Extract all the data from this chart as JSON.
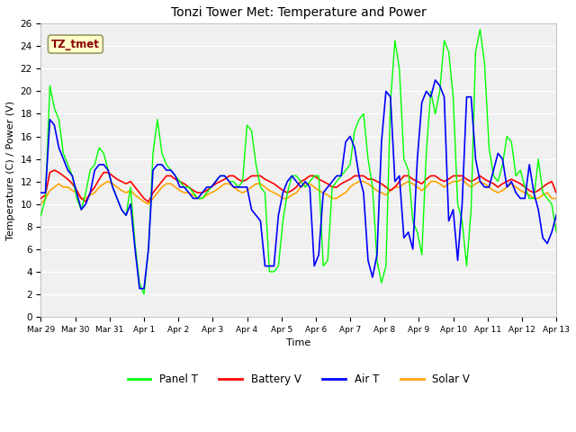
{
  "title": "Tonzi Tower Met: Temperature and Power",
  "xlabel": "Time",
  "ylabel": "Temperature (C) / Power (V)",
  "ylim": [
    0,
    26
  ],
  "yticks": [
    0,
    2,
    4,
    6,
    8,
    10,
    12,
    14,
    16,
    18,
    20,
    22,
    24,
    26
  ],
  "xtick_labels": [
    "Mar 29",
    "Mar 30",
    "Mar 31",
    "Apr 1",
    "Apr 2",
    "Apr 3",
    "Apr 4",
    "Apr 5",
    "Apr 6",
    "Apr 7",
    "Apr 8",
    "Apr 9",
    "Apr 10",
    "Apr 11",
    "Apr 12",
    "Apr 13"
  ],
  "watermark_text": "TZ_tmet",
  "watermark_color": "#8B0000",
  "watermark_bg": "#FFFFCC",
  "bg_color": "#E8E8E8",
  "panel_color": "#00FF00",
  "battery_color": "#FF0000",
  "air_color": "#0000FF",
  "solar_color": "#FFA500",
  "legend_labels": [
    "Panel T",
    "Battery V",
    "Air T",
    "Solar V"
  ],
  "panel_t": [
    9.0,
    10.5,
    20.5,
    18.5,
    17.5,
    14.5,
    13.5,
    12.5,
    10.5,
    9.5,
    11.0,
    13.0,
    13.5,
    15.0,
    14.5,
    13.0,
    11.5,
    10.5,
    9.5,
    9.0,
    11.5,
    6.5,
    3.0,
    2.0,
    6.0,
    14.5,
    17.5,
    14.5,
    13.5,
    13.0,
    12.5,
    12.0,
    11.5,
    11.5,
    11.0,
    10.5,
    10.5,
    11.0,
    11.5,
    12.0,
    12.5,
    12.5,
    12.0,
    12.0,
    11.5,
    12.0,
    17.0,
    16.5,
    13.5,
    11.5,
    11.0,
    4.0,
    4.0,
    4.5,
    8.5,
    11.0,
    12.5,
    12.5,
    12.0,
    11.5,
    12.0,
    12.5,
    12.5,
    4.5,
    5.0,
    11.5,
    12.0,
    12.5,
    13.0,
    13.5,
    16.5,
    17.5,
    18.0,
    14.0,
    11.5,
    5.0,
    3.0,
    4.5,
    19.0,
    24.5,
    22.0,
    14.0,
    13.0,
    8.5,
    7.5,
    5.5,
    14.5,
    20.0,
    18.0,
    20.0,
    24.5,
    23.5,
    19.5,
    10.0,
    8.5,
    4.5,
    9.5,
    23.5,
    25.5,
    22.5,
    15.0,
    12.5,
    12.0,
    13.5,
    16.0,
    15.5,
    12.5,
    13.0,
    11.5,
    10.5,
    10.5,
    14.0,
    11.0,
    10.5,
    10.0,
    7.5
  ],
  "battery_v": [
    10.5,
    10.8,
    12.8,
    13.0,
    12.8,
    12.5,
    12.2,
    11.8,
    11.2,
    10.5,
    10.2,
    11.0,
    11.5,
    12.2,
    12.8,
    12.8,
    12.5,
    12.2,
    12.0,
    11.8,
    12.0,
    11.5,
    11.0,
    10.5,
    10.2,
    11.0,
    11.5,
    12.0,
    12.5,
    12.5,
    12.2,
    12.0,
    11.8,
    11.5,
    11.2,
    11.0,
    11.0,
    11.2,
    11.5,
    11.8,
    12.0,
    12.2,
    12.5,
    12.5,
    12.2,
    12.0,
    12.2,
    12.5,
    12.5,
    12.5,
    12.2,
    12.0,
    11.8,
    11.5,
    11.2,
    11.0,
    11.2,
    11.5,
    12.0,
    12.2,
    12.5,
    12.5,
    12.2,
    12.0,
    11.8,
    11.5,
    11.5,
    11.8,
    12.0,
    12.2,
    12.5,
    12.5,
    12.5,
    12.2,
    12.2,
    12.0,
    11.8,
    11.5,
    11.2,
    11.5,
    12.0,
    12.5,
    12.5,
    12.2,
    12.0,
    11.8,
    12.2,
    12.5,
    12.5,
    12.2,
    12.0,
    12.2,
    12.5,
    12.5,
    12.5,
    12.2,
    12.0,
    12.2,
    12.5,
    12.2,
    12.0,
    11.8,
    11.5,
    11.8,
    12.0,
    12.2,
    12.0,
    11.8,
    11.5,
    11.2,
    11.0,
    11.2,
    11.5,
    11.8,
    12.0,
    11.0
  ],
  "air_t": [
    11.0,
    11.0,
    17.5,
    17.0,
    15.0,
    14.0,
    13.0,
    12.5,
    11.0,
    9.5,
    10.0,
    11.0,
    13.0,
    13.5,
    13.5,
    13.0,
    11.5,
    10.5,
    9.5,
    9.0,
    10.0,
    6.0,
    2.5,
    2.5,
    6.0,
    13.0,
    13.5,
    13.5,
    13.0,
    13.0,
    12.5,
    11.5,
    11.5,
    11.0,
    10.5,
    10.5,
    11.0,
    11.5,
    11.5,
    12.0,
    12.5,
    12.5,
    12.0,
    11.5,
    11.5,
    11.5,
    11.5,
    9.5,
    9.0,
    8.5,
    4.5,
    4.5,
    4.5,
    9.0,
    11.0,
    12.0,
    12.5,
    12.0,
    11.5,
    12.0,
    11.5,
    4.5,
    5.5,
    11.0,
    11.5,
    12.0,
    12.5,
    12.5,
    15.5,
    16.0,
    15.0,
    12.5,
    11.0,
    5.0,
    3.5,
    5.5,
    15.5,
    20.0,
    19.5,
    12.0,
    12.5,
    7.0,
    7.5,
    6.0,
    14.0,
    19.0,
    20.0,
    19.5,
    21.0,
    20.5,
    19.5,
    8.5,
    9.5,
    5.0,
    10.0,
    19.5,
    19.5,
    14.0,
    12.0,
    11.5,
    11.5,
    13.0,
    14.5,
    14.0,
    11.5,
    12.0,
    11.0,
    10.5,
    10.5,
    13.5,
    11.0,
    9.5,
    7.0,
    6.5,
    7.5,
    9.0
  ],
  "solar_v": [
    10.0,
    10.5,
    11.2,
    11.5,
    11.8,
    11.5,
    11.5,
    11.2,
    11.0,
    10.5,
    10.5,
    10.8,
    11.0,
    11.5,
    11.8,
    12.0,
    11.8,
    11.5,
    11.2,
    11.0,
    11.2,
    10.8,
    10.5,
    10.2,
    10.0,
    10.5,
    11.0,
    11.5,
    11.8,
    11.8,
    11.5,
    11.2,
    11.0,
    11.0,
    10.8,
    10.5,
    10.5,
    10.8,
    11.0,
    11.2,
    11.5,
    11.8,
    11.8,
    11.5,
    11.2,
    11.0,
    11.2,
    11.5,
    11.8,
    11.8,
    11.5,
    11.2,
    11.0,
    10.8,
    10.5,
    10.5,
    10.8,
    11.0,
    11.5,
    11.8,
    11.8,
    11.5,
    11.2,
    11.0,
    10.8,
    10.5,
    10.5,
    10.8,
    11.0,
    11.5,
    11.8,
    12.0,
    12.0,
    11.8,
    11.5,
    11.2,
    11.0,
    10.8,
    11.2,
    11.5,
    11.5,
    11.8,
    12.0,
    11.8,
    11.5,
    11.2,
    11.5,
    12.0,
    12.0,
    11.8,
    11.5,
    11.8,
    12.0,
    12.0,
    12.2,
    11.8,
    11.5,
    11.8,
    12.0,
    11.8,
    11.5,
    11.2,
    11.0,
    11.2,
    11.5,
    11.8,
    11.5,
    11.2,
    11.0,
    10.8,
    10.5,
    10.5,
    10.8,
    11.0,
    10.5,
    10.5
  ]
}
